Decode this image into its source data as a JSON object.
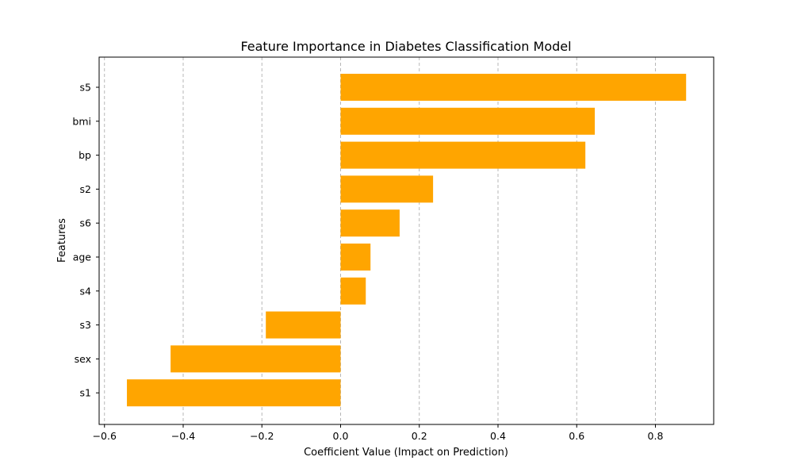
{
  "chart_data": {
    "type": "bar",
    "orientation": "horizontal",
    "title": "Feature Importance in Diabetes Classification Model",
    "xlabel": "Coefficient Value (Impact on Prediction)",
    "ylabel": "Features",
    "categories": [
      "s5",
      "bmi",
      "bp",
      "s2",
      "s6",
      "age",
      "s4",
      "s3",
      "sex",
      "s1"
    ],
    "values": [
      0.878,
      0.646,
      0.622,
      0.235,
      0.15,
      0.076,
      0.064,
      -0.19,
      -0.432,
      -0.543
    ],
    "xlim": [
      -0.6,
      0.95
    ],
    "xticks": [
      -0.6,
      -0.4,
      -0.2,
      0.0,
      0.2,
      0.4,
      0.6,
      0.8
    ],
    "xtick_labels": [
      "−0.6",
      "−0.4",
      "−0.2",
      "0.0",
      "0.2",
      "0.4",
      "0.6",
      "0.8"
    ],
    "grid": "x-axis, dashed",
    "bar_color": "#ffa500"
  }
}
